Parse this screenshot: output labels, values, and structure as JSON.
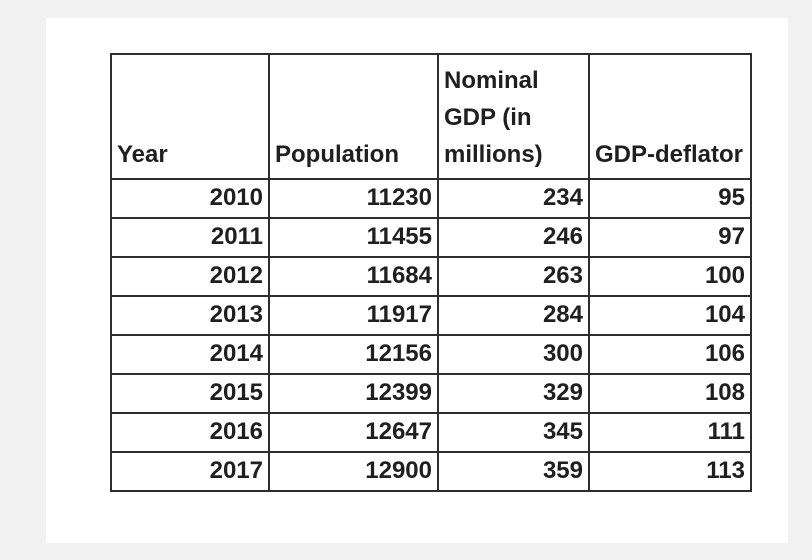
{
  "page": {
    "background_color": "#f1f1f1",
    "sheet_color": "#ffffff"
  },
  "table": {
    "border_color": "#2e2e2e",
    "text_color": "#1f1f1f",
    "columns": [
      {
        "key": "year",
        "label": "Year"
      },
      {
        "key": "population",
        "label": "Population"
      },
      {
        "key": "nominal_gdp",
        "label": "Nominal GDP (in millions)"
      },
      {
        "key": "gdp_deflator",
        "label": "GDP-deflator"
      }
    ],
    "rows": [
      {
        "year": "2010",
        "population": "11230",
        "nominal_gdp": "234",
        "gdp_deflator": "95"
      },
      {
        "year": "2011",
        "population": "11455",
        "nominal_gdp": "246",
        "gdp_deflator": "97"
      },
      {
        "year": "2012",
        "population": "11684",
        "nominal_gdp": "263",
        "gdp_deflator": "100"
      },
      {
        "year": "2013",
        "population": "11917",
        "nominal_gdp": "284",
        "gdp_deflator": "104"
      },
      {
        "year": "2014",
        "population": "12156",
        "nominal_gdp": "300",
        "gdp_deflator": "106"
      },
      {
        "year": "2015",
        "population": "12399",
        "nominal_gdp": "329",
        "gdp_deflator": "108"
      },
      {
        "year": "2016",
        "population": "12647",
        "nominal_gdp": "345",
        "gdp_deflator": "111"
      },
      {
        "year": "2017",
        "population": "12900",
        "nominal_gdp": "359",
        "gdp_deflator": "113"
      }
    ]
  },
  "chart_data": {
    "type": "table",
    "columns": [
      "Year",
      "Population",
      "Nominal GDP (in millions)",
      "GDP-deflator"
    ],
    "rows": [
      [
        2010,
        11230,
        234,
        95
      ],
      [
        2011,
        11455,
        246,
        97
      ],
      [
        2012,
        11684,
        263,
        100
      ],
      [
        2013,
        11917,
        284,
        104
      ],
      [
        2014,
        12156,
        300,
        106
      ],
      [
        2015,
        12399,
        329,
        108
      ],
      [
        2016,
        12647,
        345,
        111
      ],
      [
        2017,
        12900,
        359,
        113
      ]
    ]
  }
}
